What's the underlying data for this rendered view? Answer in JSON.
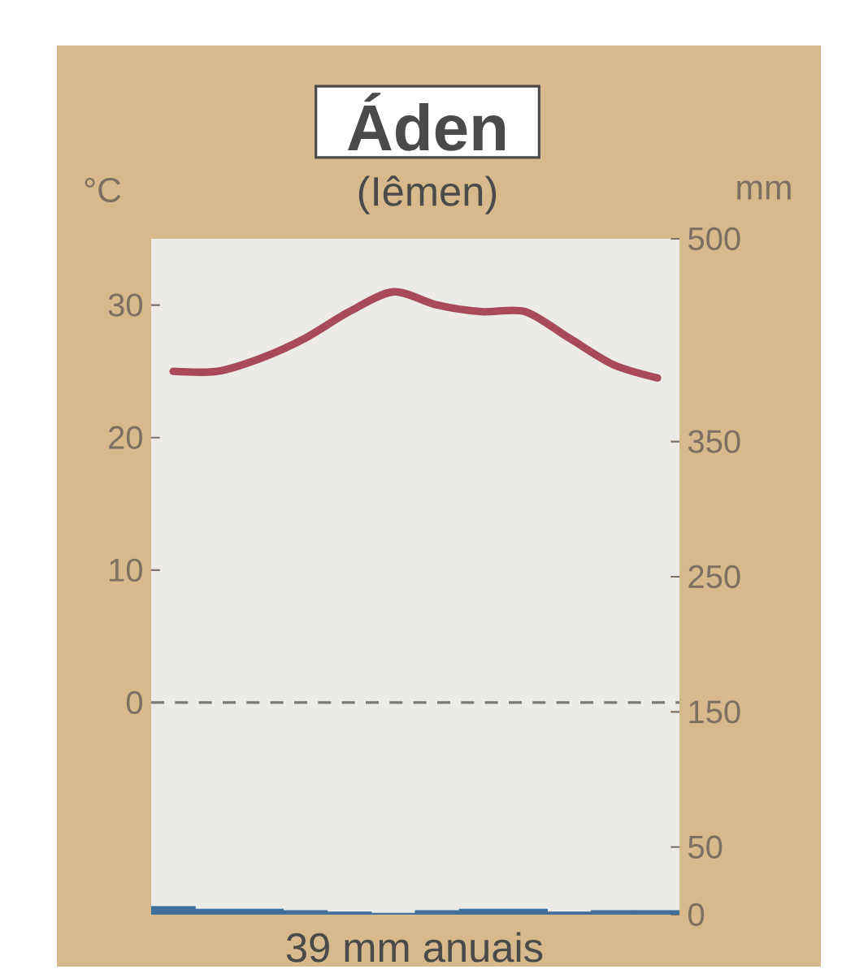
{
  "chart_data": {
    "type": "line",
    "title": "Áden",
    "subtitle": "(Iêmen)",
    "ylabel": "°C",
    "y2label": "mm",
    "annotations": [
      "39 mm anuais"
    ],
    "categories": [
      null,
      null,
      null,
      null,
      null,
      null,
      null,
      null,
      null,
      null,
      null,
      null
    ],
    "series": [
      {
        "color": "#a84a5c",
        "values": [
          25,
          25,
          26,
          27.5,
          29.5,
          31,
          30,
          29.5,
          29.5,
          27.5,
          25.5,
          24.5
        ]
      },
      {
        "type": "bar",
        "axis": "y2",
        "color": "#3f6f9a",
        "values": [
          6,
          4,
          4,
          3,
          2,
          1,
          3,
          4,
          4,
          2,
          3,
          3
        ]
      }
    ],
    "ylim": [
      -16,
      35
    ],
    "yticks": [
      0,
      10,
      20,
      30
    ],
    "y2lim": [
      0,
      500
    ],
    "y2ticks": [
      0,
      50,
      150,
      250,
      350,
      500
    ],
    "ref_lines": [
      {
        "axis": "y",
        "value": 0,
        "color": "#7a7a7a",
        "line_style": "dashed"
      }
    ],
    "grid": false,
    "marker": "none"
  }
}
